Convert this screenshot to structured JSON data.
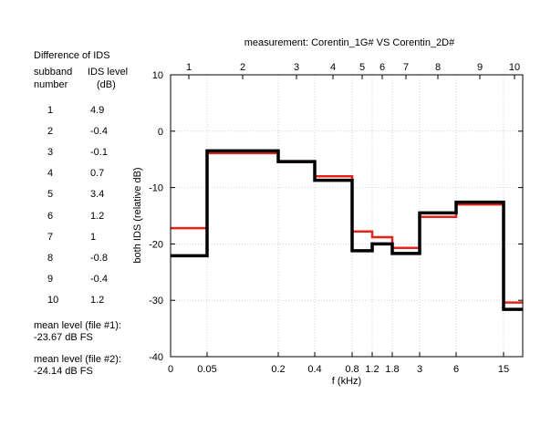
{
  "side_panel": {
    "title": "Difference of IDS",
    "col1_header_line1": "subband",
    "col1_header_line2": "number",
    "col2_header_line1": "IDS level",
    "col2_header_line2": "(dB)",
    "rows": [
      {
        "band": "1",
        "value": "4.9"
      },
      {
        "band": "2",
        "value": "-0.4"
      },
      {
        "band": "3",
        "value": "-0.1"
      },
      {
        "band": "4",
        "value": "0.7"
      },
      {
        "band": "5",
        "value": "3.4"
      },
      {
        "band": "6",
        "value": "1.2"
      },
      {
        "band": "7",
        "value": "1"
      },
      {
        "band": "8",
        "value": "-0.8"
      },
      {
        "band": "9",
        "value": "-0.4"
      },
      {
        "band": "10",
        "value": "1.2"
      }
    ],
    "mean1_label": "mean level (file #1):",
    "mean1_value": "-23.67 dB FS",
    "mean2_label": "mean level (file #2):",
    "mean2_value": "-24.14 dB FS"
  },
  "chart_data": {
    "type": "line",
    "step": true,
    "title": "measurement: Corentin_1G# VS Corentin_2D#",
    "xlabel": "f (kHz)",
    "ylabel": "both IDS (relative dB)",
    "ylim": [
      -40,
      10
    ],
    "yticks": [
      10,
      0,
      -10,
      -20,
      -30,
      -40
    ],
    "grid": true,
    "x_ticks": [
      "0",
      "0.05",
      "0.2",
      "0.4",
      "0.8",
      "1.2",
      "1.8",
      "3",
      "6",
      "15"
    ],
    "band_edges_khz": [
      0,
      0.05,
      0.2,
      0.4,
      0.8,
      1.2,
      1.8,
      3,
      6,
      15
    ],
    "top_ticks": [
      "1",
      "2",
      "3",
      "4",
      "5",
      "6",
      "7",
      "8",
      "9",
      "10"
    ],
    "series": [
      {
        "color": "#e8211b",
        "values": [
          -17.2,
          -3.9,
          -5.5,
          -8.0,
          -17.8,
          -18.8,
          -20.7,
          -15.2,
          -13.0,
          -30.4,
          -30.4
        ]
      },
      {
        "color": "#000000",
        "values": [
          -22.1,
          -3.5,
          -5.4,
          -8.7,
          -21.2,
          -20.0,
          -21.7,
          -14.5,
          -12.6,
          -31.6,
          -31.6
        ]
      }
    ]
  }
}
